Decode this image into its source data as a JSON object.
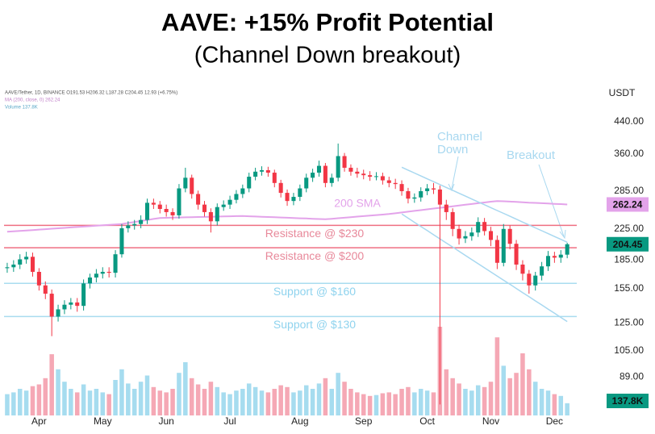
{
  "chart_data": {
    "type": "candlestick",
    "title": "AAVE: +15% Profit Potential",
    "subtitle": "(Channel Down breakout)",
    "legend": [
      "AAVE/Tether, 1D, BINANCE  O191.53 H206.32 L187.28 C204.45 12.93 (+6.75%)",
      "MA (200, close, 0)  262.24",
      "Volume  137.8K"
    ],
    "currency": "USDT",
    "log_y": true,
    "grid": false,
    "ylim": [
      70,
      555
    ],
    "yticks": [
      {
        "value": 440,
        "label": "440.00"
      },
      {
        "value": 360,
        "label": "360.00"
      },
      {
        "value": 285,
        "label": "285.00"
      },
      {
        "value": 225,
        "label": "225.00"
      },
      {
        "value": 185,
        "label": "185.00"
      },
      {
        "value": 155,
        "label": "155.00"
      },
      {
        "value": 125,
        "label": "125.00"
      },
      {
        "value": 105,
        "label": "105.00"
      },
      {
        "value": 89,
        "label": "89.00"
      }
    ],
    "up_color": "#089981",
    "down_color": "#f23645",
    "categories": [
      null,
      null,
      null,
      null,
      null,
      "Apr",
      null,
      null,
      null,
      null,
      null,
      null,
      null,
      null,
      null,
      "May",
      null,
      null,
      null,
      null,
      null,
      null,
      null,
      null,
      null,
      "Jun",
      null,
      null,
      null,
      null,
      null,
      null,
      null,
      null,
      null,
      "Jul",
      null,
      null,
      null,
      null,
      null,
      null,
      null,
      null,
      null,
      null,
      "Aug",
      null,
      null,
      null,
      null,
      null,
      null,
      null,
      null,
      null,
      "Sep",
      null,
      null,
      null,
      null,
      null,
      null,
      null,
      null,
      null,
      "Oct",
      null,
      null,
      null,
      null,
      null,
      null,
      null,
      null,
      null,
      "Nov",
      null,
      null,
      null,
      null,
      null,
      null,
      null,
      null,
      null,
      "Dec",
      null,
      null
    ],
    "open": [
      176,
      177,
      180,
      186,
      189,
      172,
      158,
      150,
      130,
      136,
      140,
      142,
      139,
      160,
      166,
      170,
      172,
      171,
      192,
      226,
      230,
      232,
      238,
      265,
      262,
      255,
      250,
      245,
      290,
      310,
      280,
      262,
      250,
      236,
      258,
      262,
      270,
      280,
      290,
      312,
      322,
      325,
      320,
      300,
      282,
      268,
      275,
      290,
      310,
      320,
      334,
      300,
      310,
      355,
      330,
      322,
      318,
      315,
      312,
      313,
      305,
      300,
      298,
      285,
      272,
      274,
      285,
      290,
      288,
      262,
      250,
      225,
      212,
      215,
      220,
      235,
      222,
      210,
      182,
      225,
      205,
      180,
      170,
      158,
      168,
      178,
      190,
      188,
      191.53
    ],
    "high": [
      182,
      185,
      192,
      195,
      194,
      176,
      162,
      154,
      140,
      144,
      146,
      146,
      164,
      170,
      175,
      177,
      177,
      197,
      232,
      236,
      238,
      245,
      272,
      272,
      268,
      262,
      256,
      298,
      330,
      316,
      286,
      268,
      256,
      264,
      269,
      277,
      287,
      297,
      320,
      330,
      333,
      332,
      326,
      306,
      288,
      282,
      297,
      318,
      328,
      345,
      340,
      318,
      384,
      362,
      337,
      330,
      326,
      323,
      321,
      320,
      312,
      308,
      305,
      291,
      281,
      292,
      298,
      300,
      295,
      270,
      256,
      231,
      222,
      227,
      242,
      241,
      228,
      216,
      232,
      230,
      210,
      185,
      174,
      172,
      183,
      196,
      195,
      197,
      206.32
    ],
    "low": [
      171,
      172,
      175,
      181,
      167,
      153,
      145,
      115,
      126,
      132,
      136,
      134,
      135,
      155,
      161,
      165,
      166,
      166,
      188,
      220,
      224,
      226,
      232,
      255,
      248,
      243,
      238,
      240,
      283,
      272,
      254,
      243,
      220,
      230,
      252,
      255,
      264,
      273,
      283,
      305,
      314,
      312,
      292,
      274,
      260,
      261,
      268,
      283,
      302,
      312,
      292,
      293,
      303,
      322,
      314,
      310,
      307,
      304,
      305,
      297,
      292,
      289,
      277,
      264,
      265,
      267,
      278,
      280,
      75,
      238,
      215,
      204,
      206,
      209,
      214,
      216,
      202,
      175,
      178,
      198,
      174,
      163,
      150,
      153,
      163,
      173,
      182,
      182,
      187.28
    ],
    "close": [
      177,
      180,
      186,
      189,
      172,
      158,
      150,
      130,
      136,
      140,
      142,
      139,
      160,
      166,
      170,
      172,
      171,
      192,
      226,
      230,
      232,
      238,
      265,
      262,
      255,
      250,
      245,
      290,
      310,
      280,
      262,
      250,
      236,
      258,
      262,
      270,
      280,
      290,
      312,
      322,
      325,
      320,
      300,
      282,
      268,
      275,
      290,
      310,
      320,
      334,
      300,
      310,
      355,
      330,
      322,
      318,
      315,
      312,
      313,
      305,
      300,
      298,
      285,
      272,
      274,
      285,
      290,
      288,
      262,
      250,
      225,
      212,
      215,
      220,
      235,
      222,
      210,
      182,
      225,
      205,
      180,
      170,
      158,
      168,
      178,
      190,
      188,
      191.53,
      204.45
    ],
    "volume": {
      "up_color": "#a6dcef",
      "down_color": "#f5a8b5",
      "badge_color": "#089981",
      "ylim": [
        0,
        1000
      ],
      "values": [
        240,
        260,
        300,
        280,
        330,
        350,
        420,
        690,
        520,
        380,
        300,
        260,
        350,
        280,
        300,
        260,
        240,
        400,
        520,
        360,
        300,
        380,
        450,
        320,
        280,
        260,
        300,
        480,
        600,
        420,
        350,
        300,
        380,
        320,
        260,
        240,
        280,
        300,
        360,
        320,
        280,
        260,
        300,
        340,
        320,
        260,
        280,
        340,
        300,
        360,
        420,
        300,
        480,
        380,
        300,
        260,
        240,
        220,
        230,
        250,
        260,
        240,
        300,
        320,
        260,
        300,
        280,
        260,
        1000,
        520,
        420,
        360,
        300,
        280,
        340,
        320,
        380,
        880,
        560,
        420,
        480,
        700,
        520,
        380,
        300,
        280,
        240,
        220,
        137.8
      ],
      "value_labels": [
        null,
        null,
        null,
        null,
        null,
        null,
        null,
        null,
        null,
        null,
        null,
        null,
        null,
        null,
        null,
        null,
        null,
        null,
        null,
        null,
        null,
        null,
        null,
        null,
        null,
        null,
        null,
        null,
        null,
        null,
        null,
        null,
        null,
        null,
        null,
        null,
        null,
        null,
        null,
        null,
        null,
        null,
        null,
        null,
        null,
        null,
        null,
        null,
        null,
        null,
        null,
        null,
        null,
        null,
        null,
        null,
        null,
        null,
        null,
        null,
        null,
        null,
        null,
        null,
        null,
        null,
        null,
        null,
        null,
        null,
        null,
        null,
        null,
        null,
        null,
        null,
        null,
        null,
        null,
        null,
        null,
        null,
        null,
        null,
        null,
        null,
        null,
        null,
        "137.8K"
      ]
    },
    "sma": {
      "name": "200 SMA",
      "color": "#e3a3ea",
      "values": [
        221,
        221.6,
        222.2,
        222.8,
        223.4,
        224.1,
        224.7,
        225.3,
        225.9,
        226.5,
        227.1,
        227.7,
        228.3,
        228.9,
        229.6,
        230.2,
        230.8,
        231.4,
        232,
        233.5,
        235,
        236.5,
        238,
        239.5,
        241,
        241.2,
        241.5,
        241.7,
        241.9,
        242.2,
        242.4,
        242.6,
        242.8,
        243.1,
        243.3,
        243.5,
        243.8,
        244,
        243.6,
        243.2,
        242.8,
        242.5,
        242.1,
        241.7,
        241.3,
        240.9,
        240.5,
        240.2,
        239.8,
        239.4,
        239,
        239.8,
        240.6,
        241.4,
        242.2,
        243,
        243.8,
        244.6,
        245.4,
        246.2,
        247,
        248.2,
        249.4,
        250.7,
        251.9,
        253.1,
        254.3,
        255.6,
        256.8,
        258,
        259.3,
        260.5,
        261.8,
        263,
        264.3,
        265.5,
        266.8,
        268,
        267.5,
        267,
        266.4,
        265.9,
        265.3,
        264.8,
        264.3,
        263.8,
        263.3,
        262.8,
        262.24
      ]
    },
    "levels": [
      {
        "value": 230,
        "label": "Resistance @ $230",
        "color": "#ef6f82",
        "text_color": "#e8889a"
      },
      {
        "value": 200,
        "label": "Resistance @ $200",
        "color": "#ef6f82",
        "text_color": "#e8889a"
      },
      {
        "value": 160,
        "label": "Support @ $160",
        "color": "#a9dcef",
        "text_color": "#8fd3ee"
      },
      {
        "value": 130,
        "label": "Support @ $130",
        "color": "#a9dcef",
        "text_color": "#8fd3ee"
      }
    ],
    "channel": {
      "label": [
        "Channel",
        "Down"
      ],
      "color": "#a8d8f0",
      "upper": [
        null,
        null,
        null,
        null,
        null,
        null,
        null,
        null,
        null,
        null,
        null,
        null,
        null,
        null,
        null,
        null,
        null,
        null,
        null,
        null,
        null,
        null,
        null,
        null,
        null,
        null,
        null,
        null,
        null,
        null,
        null,
        null,
        null,
        null,
        null,
        null,
        null,
        null,
        null,
        null,
        null,
        null,
        null,
        null,
        null,
        null,
        null,
        null,
        null,
        null,
        null,
        null,
        null,
        null,
        null,
        null,
        null,
        null,
        null,
        null,
        null,
        null,
        331,
        325.1,
        319.3,
        313.5,
        307.9,
        302.4,
        297,
        291.7,
        286.5,
        281.3,
        276.3,
        271.4,
        266.5,
        261.8,
        257.1,
        252.5,
        248,
        243.5,
        239.2,
        234.9,
        230.7,
        226.5,
        222.5,
        218.5,
        214.6,
        210.8,
        207
      ],
      "lower": [
        null,
        null,
        null,
        null,
        null,
        null,
        null,
        null,
        null,
        null,
        null,
        null,
        null,
        null,
        null,
        null,
        null,
        null,
        null,
        null,
        null,
        null,
        null,
        null,
        null,
        null,
        null,
        null,
        null,
        null,
        null,
        null,
        null,
        null,
        null,
        null,
        null,
        null,
        null,
        null,
        null,
        null,
        null,
        null,
        null,
        null,
        null,
        null,
        null,
        null,
        null,
        null,
        null,
        null,
        null,
        null,
        null,
        null,
        null,
        null,
        null,
        null,
        247,
        240.7,
        234.5,
        228.5,
        222.7,
        217,
        211.4,
        206,
        200.8,
        195.6,
        190.6,
        185.8,
        181,
        176.4,
        171.9,
        167.5,
        163.2,
        159.1,
        155,
        151,
        147.2,
        143.4,
        139.8,
        136.2,
        132.7,
        129.3,
        126
      ]
    },
    "annotations": [
      {
        "text": "Breakout",
        "color": "#a8d8f0"
      }
    ]
  }
}
